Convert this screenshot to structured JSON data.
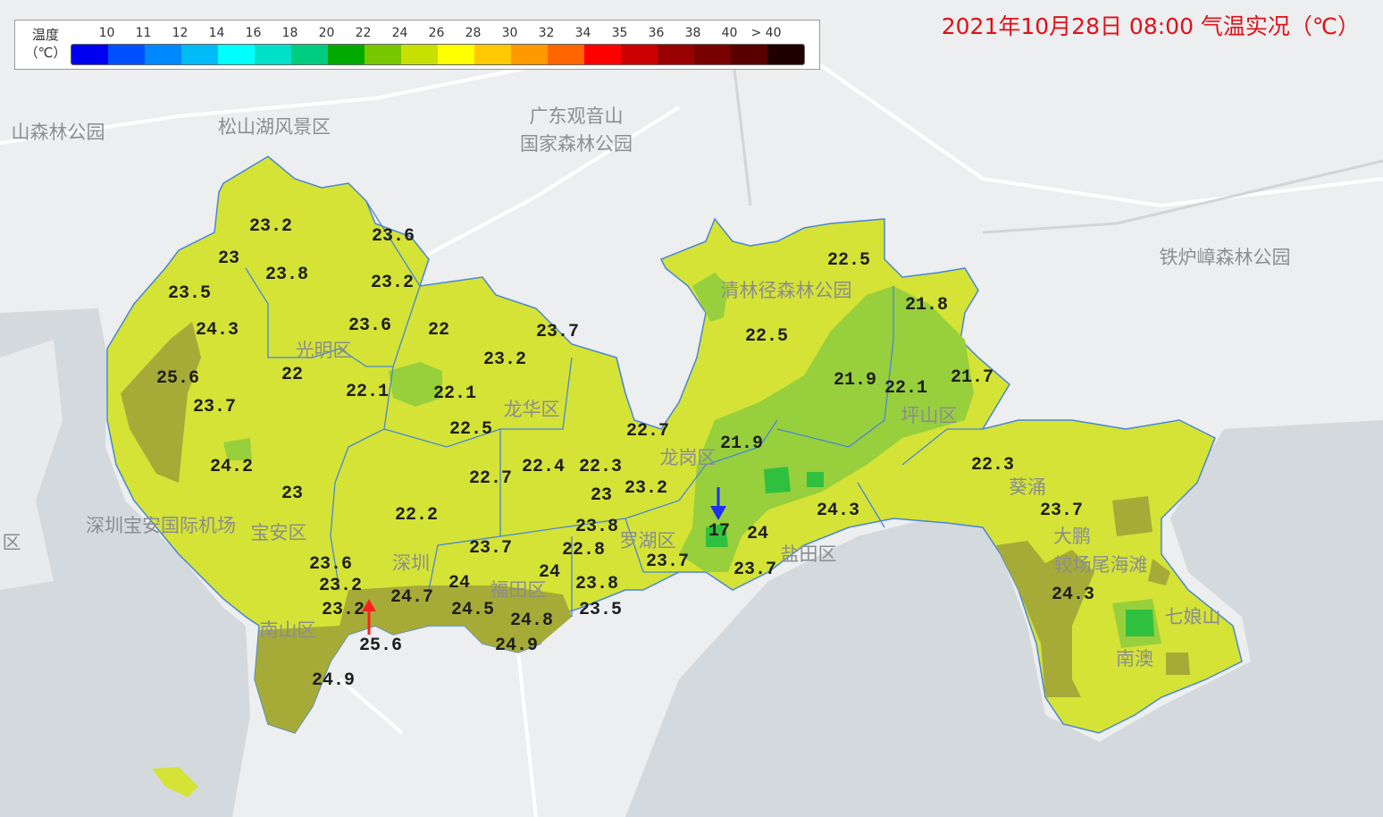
{
  "title": "2021年10月28日 08:00 气温实况（℃）",
  "legend": {
    "label_line1": "温度",
    "label_line2": "（℃）",
    "ticks": [
      "10",
      "11",
      "12",
      "14",
      "16",
      "18",
      "20",
      "22",
      "24",
      "26",
      "28",
      "30",
      "32",
      "34",
      "35",
      "36",
      "38",
      "40",
      "> 40"
    ],
    "colors": [
      "#0000f0",
      "#0050ff",
      "#0088ff",
      "#00bbf8",
      "#00ffff",
      "#00e0c8",
      "#00cc80",
      "#00aa00",
      "#78c800",
      "#c8e000",
      "#ffff00",
      "#ffc800",
      "#ff9900",
      "#ff6600",
      "#ff0000",
      "#cc0000",
      "#990000",
      "#780000",
      "#580000",
      "#200000"
    ]
  },
  "colors": {
    "land_fill": "#d4e336",
    "warm_fill": "#a6ab38",
    "cool_fill": "#98cf3c",
    "cold_fill": "#30c040",
    "title": "#e0101a"
  },
  "markers": {
    "max_arrow_color": "#ff2020",
    "min_arrow_color": "#2030f0"
  },
  "stations": [
    "23.2",
    "23.6",
    "23",
    "23.8",
    "23.2",
    "23.5",
    "24.3",
    "23.6",
    "22",
    "23.7",
    "25.6",
    "23.2",
    "22",
    "22.1",
    "22.1",
    "23.7",
    "22.5",
    "22.7",
    "21.9",
    "24.2",
    "22.4",
    "22.3",
    "22.7",
    "23",
    "23.2",
    "23",
    "22.2",
    "23.8",
    "17",
    "24",
    "24.3",
    "23.7",
    "22.8",
    "23.7",
    "23.7",
    "23.6",
    "24",
    "23.2",
    "23.8",
    "24",
    "24.7",
    "23.2",
    "24.5",
    "24.8",
    "23.5",
    "25.6",
    "24.9",
    "24.9",
    "22.5",
    "21.8",
    "22.5",
    "21.9",
    "22.1",
    "21.7",
    "22.3",
    "23.7",
    "24.3"
  ],
  "places": [
    "山森林公园",
    "松山湖风景区",
    "广东观音山",
    "国家森林公园",
    "铁炉嶂森林公园",
    "深圳宝安国际机场",
    "宝安区",
    "区",
    "光明区",
    "龙华区",
    "龙岗区",
    "坪山区",
    "清林径森林公园",
    "南山区",
    "福田区",
    "深圳",
    "罗湖区",
    "盐田区",
    "葵涌",
    "大鹏",
    "较场尾海滩",
    "七娘山",
    "南澳"
  ]
}
